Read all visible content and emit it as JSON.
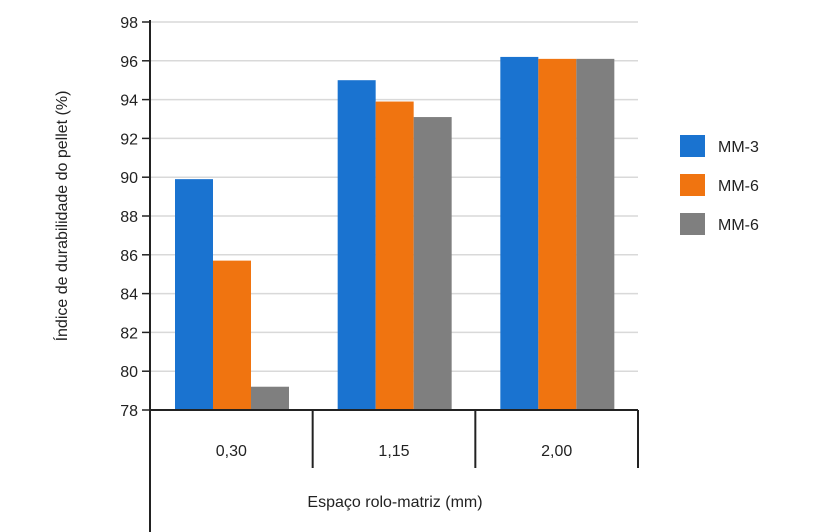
{
  "chart_data": {
    "type": "bar",
    "title": "",
    "xlabel": "Espaço rolo-matriz (mm)",
    "ylabel": "Índice de durabilidade do pellet (%)",
    "categories": [
      "0,30",
      "1,15",
      "2,00"
    ],
    "ylim": [
      78,
      98
    ],
    "yticks": [
      78,
      80,
      82,
      84,
      86,
      88,
      90,
      92,
      94,
      96,
      98
    ],
    "grid": true,
    "legend_position": "right",
    "series": [
      {
        "name": "MM-3",
        "color": "#1a73d0",
        "values": [
          89.9,
          95.0,
          96.2
        ]
      },
      {
        "name": "MM-6",
        "color": "#f07410",
        "values": [
          85.7,
          93.9,
          96.1
        ]
      },
      {
        "name": "MM-6",
        "color": "#7f7f7f",
        "values": [
          79.2,
          93.1,
          96.1
        ]
      }
    ]
  }
}
